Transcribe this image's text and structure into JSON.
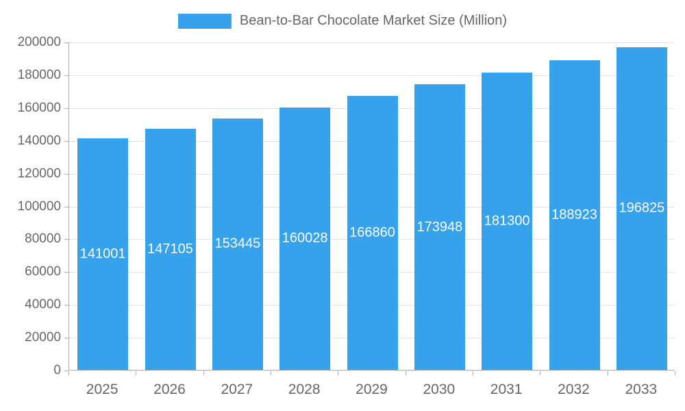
{
  "chart_data": {
    "type": "bar",
    "title": "Bean-to-Bar Chocolate Market Size (Million)",
    "categories": [
      "2025",
      "2026",
      "2027",
      "2028",
      "2029",
      "2030",
      "2031",
      "2032",
      "2033"
    ],
    "values": [
      141001,
      147105,
      153445,
      160028,
      166860,
      173948,
      181300,
      188923,
      196825
    ],
    "value_labels": [
      "141001",
      "147105",
      "153445",
      "160028",
      "166860",
      "173948",
      "181300",
      "188923",
      "196825"
    ],
    "xlabel": "",
    "ylabel": "",
    "ylim": [
      0,
      200000
    ],
    "ytick_step": 20000,
    "ytick_labels": [
      "0",
      "20000",
      "40000",
      "60000",
      "80000",
      "100000",
      "120000",
      "140000",
      "160000",
      "180000",
      "200000"
    ],
    "grid": "horizontal",
    "legend_position": "top",
    "colors": {
      "bar": "#36A2EB",
      "axis_text": "#666666",
      "grid_line": "#e3e3e3",
      "axis_line": "#ababab",
      "data_label": "#ffffff",
      "background": "#ffffff"
    }
  }
}
